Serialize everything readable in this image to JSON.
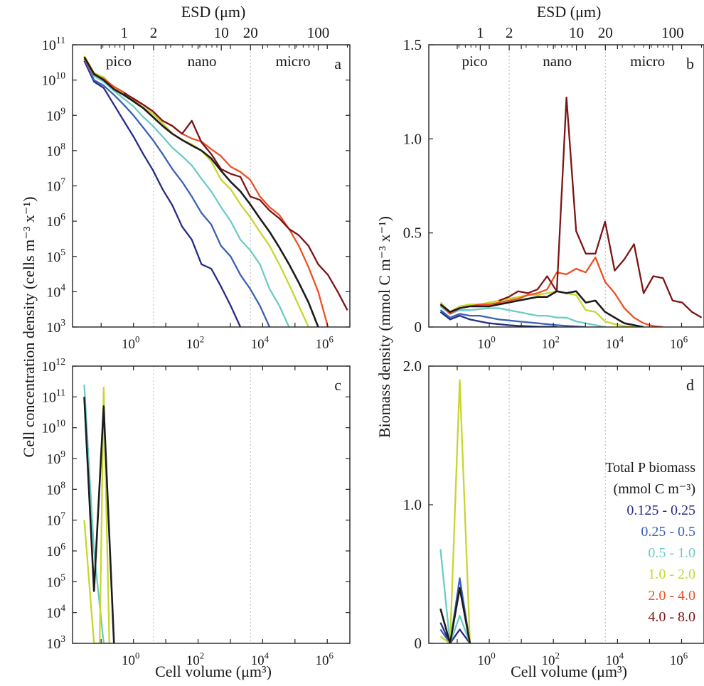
{
  "figure": {
    "ylabel_left": "Cell concentration density (cells m⁻³ x⁻¹)",
    "ylabel_right": "Biomass density (mmol C m⁻³ x⁻¹)",
    "xlabel_bottom": "Cell volume (μm³)",
    "xlabel_top": "ESD (μm)",
    "legend": {
      "title_line1": "Total P biomass",
      "title_line2": "(mmol C m⁻³)",
      "entries": [
        {
          "label": "0.125 - 0.25",
          "color": "#262c85"
        },
        {
          "label": "0.25 - 0.5",
          "color": "#3a62b6"
        },
        {
          "label": "0.5 - 1.0",
          "color": "#6ccbc6"
        },
        {
          "label": "1.0 - 2.0",
          "color": "#c8d62e"
        },
        {
          "label": "2.0 - 4.0",
          "color": "#ee4f24"
        },
        {
          "label": "4.0 - 8.0",
          "color": "#7d1416"
        },
        {
          "label": "",
          "color": "#1c1c1c"
        }
      ]
    }
  },
  "chart_data": [
    {
      "panel": "a",
      "type": "line",
      "yscale": "log",
      "xscale": "log",
      "xlim": [
        0.013,
        5000000
      ],
      "ylim": [
        1000,
        100000000000
      ],
      "x_ticks": [
        "10⁰",
        "10²",
        "10⁴",
        "10⁶"
      ],
      "y_ticks": [
        "10³",
        "10⁴",
        "10⁵",
        "10⁶",
        "10⁷",
        "10⁸",
        "10⁹",
        "10¹⁰",
        "10¹¹"
      ],
      "top_ticks": [
        "1",
        "2",
        "10",
        "20",
        "100"
      ],
      "regions": [
        "pico",
        "nano",
        "micro"
      ],
      "region_boundaries_volume": [
        4.19,
        4190
      ],
      "series": [
        {
          "color_index": 0,
          "x": [
            0.03,
            0.06,
            0.12,
            0.25,
            0.5,
            1,
            2,
            4,
            8,
            16,
            32,
            64,
            128,
            256,
            512,
            1024,
            2048,
            4096,
            8192,
            16384,
            32768
          ],
          "y": [
            35000000000.0,
            9000000000.0,
            6000000000.0,
            2000000000.0,
            700000000.0,
            250000000.0,
            80000000.0,
            28000000.0,
            8000000.0,
            2800000.0,
            700000.0,
            300000.0,
            60000.0,
            45000.0,
            14000.0,
            4000.0,
            1000.0,
            0,
            0,
            0,
            0
          ]
        },
        {
          "color_index": 1,
          "x": [
            0.03,
            0.06,
            0.12,
            0.25,
            0.5,
            1,
            2,
            4,
            8,
            16,
            32,
            64,
            128,
            256,
            512,
            1024,
            2048,
            4096,
            8192,
            16384
          ],
          "y": [
            40000000000.0,
            10000000000.0,
            7000000000.0,
            3800000000.0,
            2000000000.0,
            1000000000.0,
            450000000.0,
            200000000.0,
            80000000.0,
            30000000.0,
            13000000.0,
            5000000.0,
            1700000.0,
            800000.0,
            200000.0,
            100000.0,
            30000.0,
            12000.0,
            4000.0,
            1000.0
          ]
        },
        {
          "color_index": 2,
          "x": [
            0.03,
            0.06,
            0.12,
            0.25,
            0.5,
            1,
            2,
            4,
            8,
            16,
            32,
            64,
            128,
            256,
            512,
            1024,
            2048,
            4096,
            8192,
            16384,
            32768,
            65536
          ],
          "y": [
            45000000000.0,
            13000000000.0,
            9000000000.0,
            5000000000.0,
            3000000000.0,
            1800000000.0,
            900000000.0,
            500000000.0,
            250000000.0,
            120000000.0,
            70000000.0,
            38000000.0,
            16000000.0,
            7000000.0,
            2500000.0,
            1000000.0,
            300000.0,
            150000.0,
            60000.0,
            12000.0,
            4000.0,
            1000.0
          ]
        },
        {
          "color_index": 3,
          "x": [
            0.03,
            0.06,
            0.12,
            0.25,
            0.5,
            1,
            2,
            4,
            8,
            16,
            32,
            64,
            128,
            256,
            512,
            1024,
            2048,
            4096,
            8192,
            16384,
            32768,
            65536,
            131072,
            262144
          ],
          "y": [
            48000000000.0,
            16000000000.0,
            12000000000.0,
            6000000000.0,
            4000000000.0,
            2600000000.0,
            1700000000.0,
            1100000000.0,
            600000000.0,
            300000000.0,
            200000000.0,
            150000000.0,
            100000000.0,
            50000000.0,
            15000000.0,
            8000000.0,
            3000000.0,
            1300000.0,
            500000.0,
            200000.0,
            60000.0,
            16000.0,
            4000.0,
            1000.0
          ]
        },
        {
          "color_index": 4,
          "x": [
            0.03,
            0.06,
            0.12,
            0.25,
            0.5,
            1,
            2,
            4,
            8,
            16,
            32,
            64,
            128,
            256,
            512,
            1024,
            2048,
            4096,
            8192,
            16384,
            32768,
            65536,
            131072,
            262144,
            524288,
            1048576
          ],
          "y": [
            40000000000.0,
            14000000000.0,
            11000000000.0,
            6500000000.0,
            4500000000.0,
            2900000000.0,
            2000000000.0,
            1300000000.0,
            700000000.0,
            500000000.0,
            300000000.0,
            220000000.0,
            180000000.0,
            110000000.0,
            70000000.0,
            35000000.0,
            25000000.0,
            15000000.0,
            5000000.0,
            2500000.0,
            1500000.0,
            600000.0,
            200000.0,
            50000.0,
            10000.0,
            1000.0
          ]
        },
        {
          "color_index": 5,
          "x": [
            0.5,
            1,
            2,
            4,
            8,
            16,
            32,
            64,
            128,
            256,
            512,
            1024,
            2048,
            4096,
            8192,
            16384,
            32768,
            65536,
            131072,
            262144,
            524288,
            1048576,
            2097152,
            4194304
          ],
          "y": [
            4300000000.0,
            3000000000.0,
            2000000000.0,
            1300000000.0,
            700000000.0,
            500000000.0,
            300000000.0,
            700000000.0,
            170000000.0,
            80000000.0,
            30000000.0,
            22000000.0,
            18000000.0,
            5000000.0,
            4000000.0,
            2000000.0,
            1200000.0,
            600000.0,
            400000.0,
            200000.0,
            60000.0,
            30000.0,
            10000.0,
            3000.0
          ]
        },
        {
          "color_index": 6,
          "x": [
            0.03,
            0.06,
            0.12,
            0.25,
            0.5,
            1,
            2,
            4,
            8,
            16,
            32,
            64,
            128,
            256,
            512,
            1024,
            2048,
            4096,
            8192,
            16384,
            32768,
            65536,
            131072,
            262144,
            524288
          ],
          "y": [
            45000000000.0,
            15000000000.0,
            10000000000.0,
            5500000000.0,
            3800000000.0,
            2500000000.0,
            1600000000.0,
            900000000.0,
            500000000.0,
            300000000.0,
            200000000.0,
            140000000.0,
            100000000.0,
            60000000.0,
            27000000.0,
            13000000.0,
            7000000.0,
            3000000.0,
            1200000.0,
            500000.0,
            180000.0,
            60000.0,
            18000.0,
            5000.0,
            1000.0
          ]
        }
      ]
    },
    {
      "panel": "b",
      "type": "line",
      "yscale": "linear",
      "xscale": "log",
      "xlim": [
        0.013,
        5000000
      ],
      "ylim": [
        0,
        1.5
      ],
      "x_ticks": [
        "10⁰",
        "10²",
        "10⁴",
        "10⁶"
      ],
      "y_ticks": [
        "0",
        "0.5",
        "1.0",
        "1.5"
      ],
      "top_ticks": [
        "1",
        "2",
        "10",
        "20",
        "100"
      ],
      "regions": [
        "pico",
        "nano",
        "micro"
      ],
      "region_boundaries_volume": [
        4.19,
        4190
      ],
      "series": [
        {
          "color_index": 0,
          "x": [
            0.03,
            0.06,
            0.12,
            0.25,
            0.5,
            1,
            2,
            4,
            8,
            16,
            32,
            64,
            128
          ],
          "y": [
            0.08,
            0.04,
            0.06,
            0.04,
            0.03,
            0.02,
            0.015,
            0.01,
            0.006,
            0.004,
            0.002,
            0.001,
            0.0
          ]
        },
        {
          "color_index": 1,
          "x": [
            0.03,
            0.06,
            0.12,
            0.25,
            0.5,
            1,
            2,
            4,
            8,
            16,
            32,
            64,
            128,
            256,
            512,
            1024
          ],
          "y": [
            0.09,
            0.05,
            0.07,
            0.06,
            0.06,
            0.05,
            0.04,
            0.035,
            0.03,
            0.025,
            0.02,
            0.015,
            0.01,
            0.006,
            0.003,
            0.0
          ]
        },
        {
          "color_index": 2,
          "x": [
            0.03,
            0.06,
            0.12,
            0.25,
            0.5,
            1,
            2,
            4,
            8,
            16,
            32,
            64,
            128,
            256,
            512,
            1024,
            2048,
            4096
          ],
          "y": [
            0.11,
            0.07,
            0.09,
            0.09,
            0.095,
            0.1,
            0.1,
            0.09,
            0.08,
            0.07,
            0.06,
            0.06,
            0.05,
            0.05,
            0.03,
            0.02,
            0.01,
            0.0
          ]
        },
        {
          "color_index": 3,
          "x": [
            0.03,
            0.06,
            0.12,
            0.25,
            0.5,
            1,
            2,
            4,
            8,
            16,
            32,
            64,
            128,
            256,
            512,
            1024,
            2048,
            4096,
            8192,
            16384,
            32768
          ],
          "y": [
            0.13,
            0.08,
            0.11,
            0.12,
            0.12,
            0.13,
            0.14,
            0.15,
            0.16,
            0.17,
            0.17,
            0.18,
            0.19,
            0.18,
            0.17,
            0.09,
            0.08,
            0.03,
            0.015,
            0.005,
            0.0
          ]
        },
        {
          "color_index": 4,
          "x": [
            0.03,
            0.06,
            0.12,
            0.25,
            0.5,
            1,
            2,
            4,
            8,
            16,
            32,
            64,
            128,
            256,
            512,
            1024,
            2048,
            4096,
            8192,
            16384,
            32768,
            65536,
            131072,
            262144
          ],
          "y": [
            0.12,
            0.07,
            0.1,
            0.11,
            0.12,
            0.12,
            0.13,
            0.14,
            0.15,
            0.17,
            0.18,
            0.2,
            0.29,
            0.28,
            0.31,
            0.29,
            0.37,
            0.24,
            0.18,
            0.1,
            0.05,
            0.02,
            0.005,
            0.0
          ]
        },
        {
          "color_index": 5,
          "x": [
            2,
            4,
            8,
            16,
            32,
            64,
            128,
            256,
            512,
            1024,
            2048,
            4096,
            8192,
            16384,
            32768,
            65536,
            131072,
            262144,
            524288,
            1048576,
            2097152,
            4194304
          ],
          "y": [
            0.14,
            0.16,
            0.19,
            0.18,
            0.2,
            0.27,
            0.19,
            1.22,
            0.51,
            0.39,
            0.39,
            0.56,
            0.3,
            0.36,
            0.44,
            0.18,
            0.27,
            0.26,
            0.14,
            0.13,
            0.08,
            0.05
          ]
        },
        {
          "color_index": 6,
          "x": [
            0.03,
            0.06,
            0.12,
            0.25,
            0.5,
            1,
            2,
            4,
            8,
            16,
            32,
            64,
            128,
            256,
            512,
            1024,
            2048,
            4096,
            8192,
            16384,
            32768,
            65536
          ],
          "y": [
            0.12,
            0.08,
            0.1,
            0.11,
            0.11,
            0.11,
            0.12,
            0.13,
            0.14,
            0.15,
            0.16,
            0.16,
            0.19,
            0.18,
            0.19,
            0.13,
            0.14,
            0.08,
            0.05,
            0.02,
            0.01,
            0.0
          ]
        }
      ]
    },
    {
      "panel": "c",
      "type": "line",
      "yscale": "log",
      "xscale": "log",
      "xlim": [
        0.013,
        5000000
      ],
      "ylim": [
        1000,
        1000000000000
      ],
      "x_ticks": [
        "10⁰",
        "10²",
        "10⁴",
        "10⁶"
      ],
      "y_ticks": [
        "10³",
        "10⁴",
        "10⁵",
        "10⁶",
        "10⁷",
        "10⁸",
        "10⁹",
        "10¹⁰",
        "10¹¹",
        "10¹²"
      ],
      "series": [
        {
          "color_index": 2,
          "x": [
            0.03,
            0.06,
            0.12,
            0.18
          ],
          "y": [
            250000000000.0,
            1000000.0,
            1000.0,
            1000.0
          ]
        },
        {
          "color_index": 3,
          "x": [
            0.03,
            0.06,
            0.09,
            0.12,
            0.18,
            0.25
          ],
          "y": [
            10000000.0,
            1000.0,
            1000.0,
            200000000000.0,
            1000.0,
            1000.0
          ]
        },
        {
          "color_index": 6,
          "x": [
            0.03,
            0.06,
            0.12,
            0.25
          ],
          "y": [
            100000000000.0,
            50000.0,
            50000000000.0,
            1000.0
          ]
        }
      ]
    },
    {
      "panel": "d",
      "type": "line",
      "yscale": "linear",
      "xscale": "log",
      "xlim": [
        0.013,
        5000000
      ],
      "ylim": [
        0,
        2.0
      ],
      "x_ticks": [
        "10⁰",
        "10²",
        "10⁴",
        "10⁶"
      ],
      "y_ticks": [
        "0",
        "1.0",
        "2.0"
      ],
      "series": [
        {
          "color_index": 0,
          "x": [
            0.03,
            0.06,
            0.12,
            0.25
          ],
          "y": [
            0.15,
            0.0,
            0.1,
            0.0
          ]
        },
        {
          "color_index": 1,
          "x": [
            0.03,
            0.06,
            0.12,
            0.25
          ],
          "y": [
            0.1,
            0.0,
            0.47,
            0.0
          ]
        },
        {
          "color_index": 2,
          "x": [
            0.03,
            0.06,
            0.12,
            0.25
          ],
          "y": [
            0.68,
            0.0,
            0.2,
            0.0
          ]
        },
        {
          "color_index": 3,
          "x": [
            0.03,
            0.06,
            0.12,
            0.25
          ],
          "y": [
            0.05,
            0.0,
            1.9,
            0.0
          ]
        },
        {
          "color_index": 6,
          "x": [
            0.03,
            0.06,
            0.12,
            0.25
          ],
          "y": [
            0.25,
            0.0,
            0.4,
            0.0
          ]
        }
      ]
    }
  ]
}
